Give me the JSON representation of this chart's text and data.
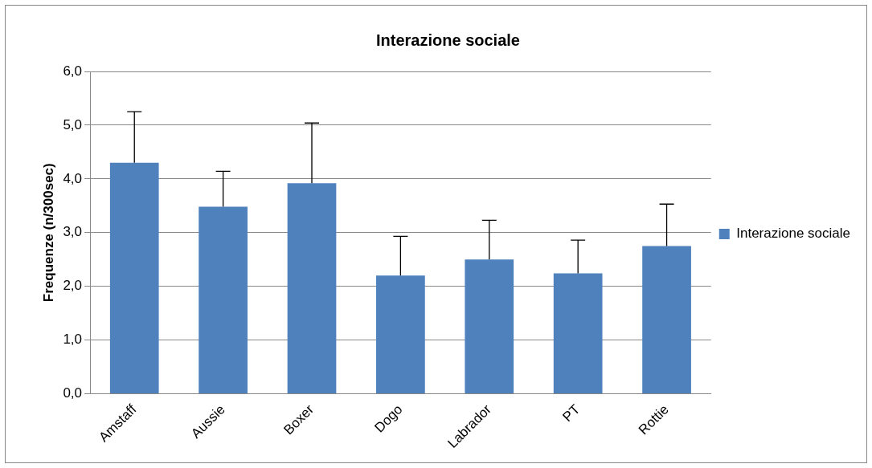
{
  "chart_data": {
    "type": "bar",
    "title": "Interazione sociale",
    "ylabel": "Frequenze (n/300sec)",
    "categories": [
      "Amstaff",
      "Aussie",
      "Boxer",
      "Dogo",
      "Labrador",
      "PT",
      "Rottie"
    ],
    "series": [
      {
        "name": "Interazione sociale",
        "color": "#4f81bd",
        "values": [
          4.3,
          3.48,
          3.92,
          2.2,
          2.5,
          2.24,
          2.75
        ],
        "errors": [
          [
            4.3,
            5.25
          ],
          [
            3.48,
            4.14
          ],
          [
            3.92,
            5.04
          ],
          [
            2.2,
            2.93
          ],
          [
            2.5,
            3.23
          ],
          [
            2.24,
            2.86
          ],
          [
            2.75,
            3.53
          ]
        ]
      }
    ],
    "ylim": [
      0,
      6
    ],
    "yticks": [
      {
        "value": 0,
        "label": "0,0"
      },
      {
        "value": 1,
        "label": "1,0"
      },
      {
        "value": 2,
        "label": "2,0"
      },
      {
        "value": 3,
        "label": "3,0"
      },
      {
        "value": 4,
        "label": "4,0"
      },
      {
        "value": 5,
        "label": "5,0"
      },
      {
        "value": 6,
        "label": "6,0"
      }
    ],
    "grid": "y",
    "legend": "right"
  }
}
